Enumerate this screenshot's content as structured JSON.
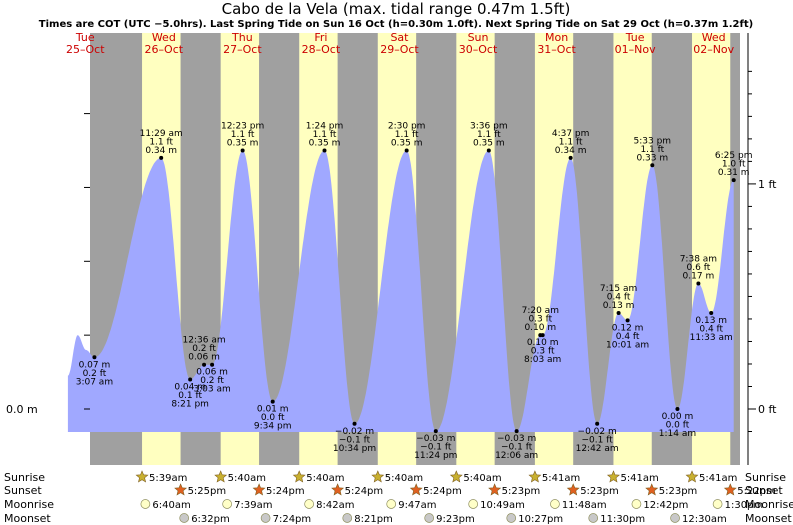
{
  "header": {
    "title": "Cabo de la Vela (max. tidal range 0.47m 1.5ft)",
    "subtitle": "Times are COT (UTC −5.0hrs). Last Spring Tide on Sun 16 Oct (h=0.30m 1.0ft). Next Spring Tide on Sat 29 Oct (h=0.37m 1.2ft)"
  },
  "days": [
    {
      "name": "Tue",
      "date": "25–Oct"
    },
    {
      "name": "Wed",
      "date": "26–Oct"
    },
    {
      "name": "Thu",
      "date": "27–Oct"
    },
    {
      "name": "Fri",
      "date": "28–Oct"
    },
    {
      "name": "Sat",
      "date": "29–Oct"
    },
    {
      "name": "Sun",
      "date": "30–Oct"
    },
    {
      "name": "Mon",
      "date": "31–Oct"
    },
    {
      "name": "Tue",
      "date": "01–Nov"
    },
    {
      "name": "Wed",
      "date": "02–Nov"
    }
  ],
  "chart_data": {
    "type": "area",
    "x_unit": "hours",
    "y_unit": "m",
    "ylim": [
      -0.048,
      0.5
    ],
    "y_axis_left": [
      {
        "value": 0.0,
        "label": "0.0 m"
      }
    ],
    "y_axis_right": [
      {
        "value": 0.0,
        "label": "0 ft"
      },
      {
        "value": 0.3048,
        "label": "1 ft"
      }
    ],
    "tides": [
      {
        "kind": "low",
        "t": 15.1,
        "m": 0.07,
        "lines": [
          "0.07 m",
          "0.2 ft",
          "3:07 am"
        ]
      },
      {
        "kind": "high",
        "t": 35.5,
        "m": 0.34,
        "lines": [
          "11:29 am",
          "1.1 ft",
          "0.34 m"
        ]
      },
      {
        "kind": "low",
        "t": 44.35,
        "m": 0.04,
        "lines": [
          "0.04 m",
          "0.1 ft",
          "8:21 pm"
        ]
      },
      {
        "kind": "high",
        "t": 48.6,
        "m": 0.06,
        "lines": [
          "12:36 am",
          "0.2 ft",
          "0.06 m"
        ]
      },
      {
        "kind": "low",
        "t": 51.05,
        "m": 0.06,
        "lines": [
          "0.06 m",
          "0.2 ft",
          "3:03 am"
        ]
      },
      {
        "kind": "high",
        "t": 60.38,
        "m": 0.35,
        "lines": [
          "12:23 pm",
          "1.1 ft",
          "0.35 m"
        ]
      },
      {
        "kind": "low",
        "t": 69.57,
        "m": 0.01,
        "lines": [
          "0.01 m",
          "0.0 ft",
          "9:34 pm"
        ]
      },
      {
        "kind": "high",
        "t": 85.4,
        "m": 0.35,
        "lines": [
          "1:24 pm",
          "1.1 ft",
          "0.35 m"
        ]
      },
      {
        "kind": "low",
        "t": 94.57,
        "m": -0.02,
        "lines": [
          "−0.02 m",
          "−0.1 ft",
          "10:34 pm"
        ]
      },
      {
        "kind": "high",
        "t": 110.5,
        "m": 0.35,
        "lines": [
          "2:30 pm",
          "1.1 ft",
          "0.35 m"
        ]
      },
      {
        "kind": "low",
        "t": 119.4,
        "m": -0.03,
        "lines": [
          "−0.03 m",
          "−0.1 ft",
          "11:24 pm"
        ]
      },
      {
        "kind": "high",
        "t": 135.6,
        "m": 0.35,
        "lines": [
          "3:36 pm",
          "1.1 ft",
          "0.35 m"
        ]
      },
      {
        "kind": "low",
        "t": 144.1,
        "m": -0.03,
        "lines": [
          "−0.03 m",
          "−0.1 ft",
          "12:06 am"
        ]
      },
      {
        "kind": "high",
        "t": 151.33,
        "m": 0.1,
        "lines": [
          "7:20 am",
          "0.3 ft",
          "0.10 m"
        ]
      },
      {
        "kind": "low",
        "t": 152.05,
        "m": 0.1,
        "lines": [
          "0.10 m",
          "0.3 ft",
          "8:03 am"
        ]
      },
      {
        "kind": "high",
        "t": 160.6,
        "m": 0.34,
        "lines": [
          "4:37 pm",
          "1.1 ft",
          "0.34 m"
        ]
      },
      {
        "kind": "low",
        "t": 168.7,
        "m": -0.02,
        "lines": [
          "−0.02 m",
          "−0.1 ft",
          "12:42 am"
        ]
      },
      {
        "kind": "high",
        "t": 175.25,
        "m": 0.13,
        "lines": [
          "7:15 am",
          "0.4 ft",
          "0.13 m"
        ]
      },
      {
        "kind": "low",
        "t": 178.0,
        "m": 0.12,
        "lines": [
          "0.12 m",
          "0.4 ft",
          "10:01 am"
        ]
      },
      {
        "kind": "high",
        "t": 185.55,
        "m": 0.33,
        "lines": [
          "5:33 pm",
          "1.1 ft",
          "0.33 m"
        ]
      },
      {
        "kind": "low",
        "t": 193.23,
        "m": 0.0,
        "lines": [
          "0.00 m",
          "0.0 ft",
          "1:14 am"
        ]
      },
      {
        "kind": "high",
        "t": 199.63,
        "m": 0.17,
        "lines": [
          "7:38 am",
          "0.6 ft",
          "0.17 m"
        ]
      },
      {
        "kind": "low",
        "t": 203.55,
        "m": 0.13,
        "lines": [
          "0.13 m",
          "0.4 ft",
          "11:33 am"
        ]
      },
      {
        "kind": "high",
        "t": 210.42,
        "m": 0.31,
        "lines": [
          "6:25 pm",
          "1.0 ft",
          "0.31 m"
        ]
      }
    ],
    "daylight": [
      [
        29.65,
        41.42
      ],
      [
        53.67,
        65.4
      ],
      [
        77.67,
        89.4
      ],
      [
        101.67,
        113.4
      ],
      [
        125.67,
        137.38
      ],
      [
        149.68,
        161.38
      ],
      [
        173.68,
        185.38
      ],
      [
        197.68,
        209.37
      ]
    ]
  },
  "sun_moon": {
    "labels": {
      "sunrise": "Sunrise",
      "sunset": "Sunset",
      "moonrise": "Moonrise",
      "moonset": "Moonset"
    },
    "sunrise": [
      {
        "t": 29.65,
        "time": "5:39am"
      },
      {
        "t": 53.67,
        "time": "5:40am"
      },
      {
        "t": 77.67,
        "time": "5:40am"
      },
      {
        "t": 101.67,
        "time": "5:40am"
      },
      {
        "t": 125.67,
        "time": "5:40am"
      },
      {
        "t": 149.68,
        "time": "5:41am"
      },
      {
        "t": 173.68,
        "time": "5:41am"
      },
      {
        "t": 197.68,
        "time": "5:41am"
      }
    ],
    "sunset": [
      {
        "t": 41.42,
        "time": "5:25pm"
      },
      {
        "t": 65.4,
        "time": "5:24pm"
      },
      {
        "t": 89.4,
        "time": "5:24pm"
      },
      {
        "t": 113.4,
        "time": "5:24pm"
      },
      {
        "t": 137.38,
        "time": "5:23pm"
      },
      {
        "t": 161.38,
        "time": "5:23pm"
      },
      {
        "t": 185.38,
        "time": "5:23pm"
      },
      {
        "t": 209.37,
        "time": "5:22pm"
      }
    ],
    "moonrise": [
      {
        "t": 30.67,
        "time": "6:40am"
      },
      {
        "t": 55.65,
        "time": "7:39am"
      },
      {
        "t": 80.7,
        "time": "8:42am"
      },
      {
        "t": 105.78,
        "time": "9:47am"
      },
      {
        "t": 130.82,
        "time": "10:49am"
      },
      {
        "t": 155.8,
        "time": "11:48am"
      },
      {
        "t": 180.7,
        "time": "12:42pm"
      },
      {
        "t": 205.5,
        "time": "1:30pm"
      }
    ],
    "moonset": [
      {
        "t": 42.53,
        "time": "6:32pm"
      },
      {
        "t": 67.4,
        "time": "7:24pm"
      },
      {
        "t": 92.35,
        "time": "8:21pm"
      },
      {
        "t": 117.38,
        "time": "9:23pm"
      },
      {
        "t": 142.45,
        "time": "10:27pm"
      },
      {
        "t": 167.5,
        "time": "11:30pm"
      },
      {
        "t": 192.5,
        "time": "12:30am"
      }
    ]
  },
  "colors": {
    "night": "#a0a0a0",
    "day": "#ffffc0",
    "water": "#a0a8ff",
    "sun_icon": "#c8b030",
    "sunset_icon": "#e06020",
    "moon_icon": "#ffffc8",
    "moonset_icon": "#c8c8c8",
    "day_label": "#cc0000"
  }
}
